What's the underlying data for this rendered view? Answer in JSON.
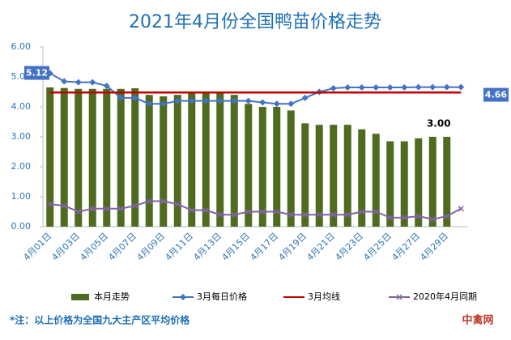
{
  "chart_data": {
    "type": "bar_line",
    "title": "2021年4月份全国鸭苗价格走势",
    "categories": [
      "4月01日",
      null,
      "4月03日",
      null,
      "4月05日",
      null,
      "4月07日",
      null,
      "4月09日",
      null,
      "4月11日",
      null,
      "4月13日",
      null,
      "4月15日",
      null,
      "4月17日",
      null,
      "4月19日",
      null,
      "4月21日",
      null,
      "4月23日",
      null,
      "4月25日",
      null,
      "4月27日",
      null,
      "4月29日",
      null
    ],
    "series": [
      {
        "name": "本月走势",
        "kind": "bar",
        "color": "#4e6b1f",
        "values": [
          4.65,
          4.63,
          4.6,
          4.6,
          4.6,
          4.6,
          4.62,
          4.4,
          4.35,
          4.4,
          4.45,
          4.45,
          4.45,
          4.4,
          4.1,
          4.0,
          4.0,
          3.88,
          3.45,
          3.4,
          3.4,
          3.4,
          3.25,
          3.1,
          2.85,
          2.85,
          2.95,
          3.0,
          3.0,
          null
        ],
        "value_labels": [
          null,
          null,
          null,
          null,
          null,
          null,
          null,
          null,
          null,
          null,
          null,
          null,
          null,
          null,
          null,
          null,
          null,
          null,
          null,
          null,
          null,
          null,
          null,
          null,
          null,
          null,
          null,
          null,
          "3.00",
          null
        ]
      },
      {
        "name": "3月每日价格",
        "kind": "line",
        "marker": "diamond",
        "color": "#4472c4",
        "values": [
          5.12,
          4.85,
          4.82,
          4.82,
          4.7,
          4.3,
          4.3,
          4.1,
          4.1,
          4.2,
          4.2,
          4.2,
          4.2,
          4.2,
          4.2,
          4.15,
          4.1,
          4.1,
          4.3,
          4.5,
          4.62,
          4.65,
          4.65,
          4.65,
          4.65,
          4.65,
          4.66,
          4.66,
          4.66,
          4.66
        ],
        "value_labels": [
          "5.12",
          null,
          null,
          null,
          null,
          null,
          null,
          null,
          null,
          null,
          null,
          null,
          null,
          null,
          null,
          null,
          null,
          null,
          null,
          null,
          null,
          null,
          null,
          null,
          null,
          null,
          null,
          null,
          null,
          "4.66"
        ]
      },
      {
        "name": "3月均线",
        "kind": "line",
        "marker": "none",
        "color": "#c00000",
        "values": [
          4.48,
          4.48,
          4.48,
          4.48,
          4.48,
          4.48,
          4.48,
          4.48,
          4.48,
          4.48,
          4.48,
          4.48,
          4.48,
          4.48,
          4.48,
          4.48,
          4.48,
          4.48,
          4.48,
          4.48,
          4.48,
          4.48,
          4.48,
          4.48,
          4.48,
          4.48,
          4.48,
          4.48,
          4.48,
          4.48
        ]
      },
      {
        "name": "2020年4月同期",
        "kind": "line",
        "marker": "cross",
        "color": "#8064a2",
        "values": [
          0.75,
          0.7,
          0.5,
          0.6,
          0.6,
          0.6,
          0.7,
          0.85,
          0.85,
          0.75,
          0.55,
          0.55,
          0.4,
          0.4,
          0.5,
          0.5,
          0.5,
          0.4,
          0.4,
          0.4,
          0.4,
          0.4,
          0.5,
          0.5,
          0.3,
          0.3,
          0.35,
          0.25,
          0.35,
          0.6
        ]
      }
    ],
    "ylim": [
      0,
      6
    ],
    "yticks": [
      {
        "value": 0,
        "label": "0.00"
      },
      {
        "value": 1,
        "label": "1.00"
      },
      {
        "value": 2,
        "label": "2.00"
      },
      {
        "value": 3,
        "label": "3.00"
      },
      {
        "value": 4,
        "label": "4.00"
      },
      {
        "value": 5,
        "label": "5.00"
      },
      {
        "value": 6,
        "label": "6.00"
      }
    ],
    "note": "*注：以上价格为全国九大主产区平均价格",
    "watermark": "中禽网"
  }
}
